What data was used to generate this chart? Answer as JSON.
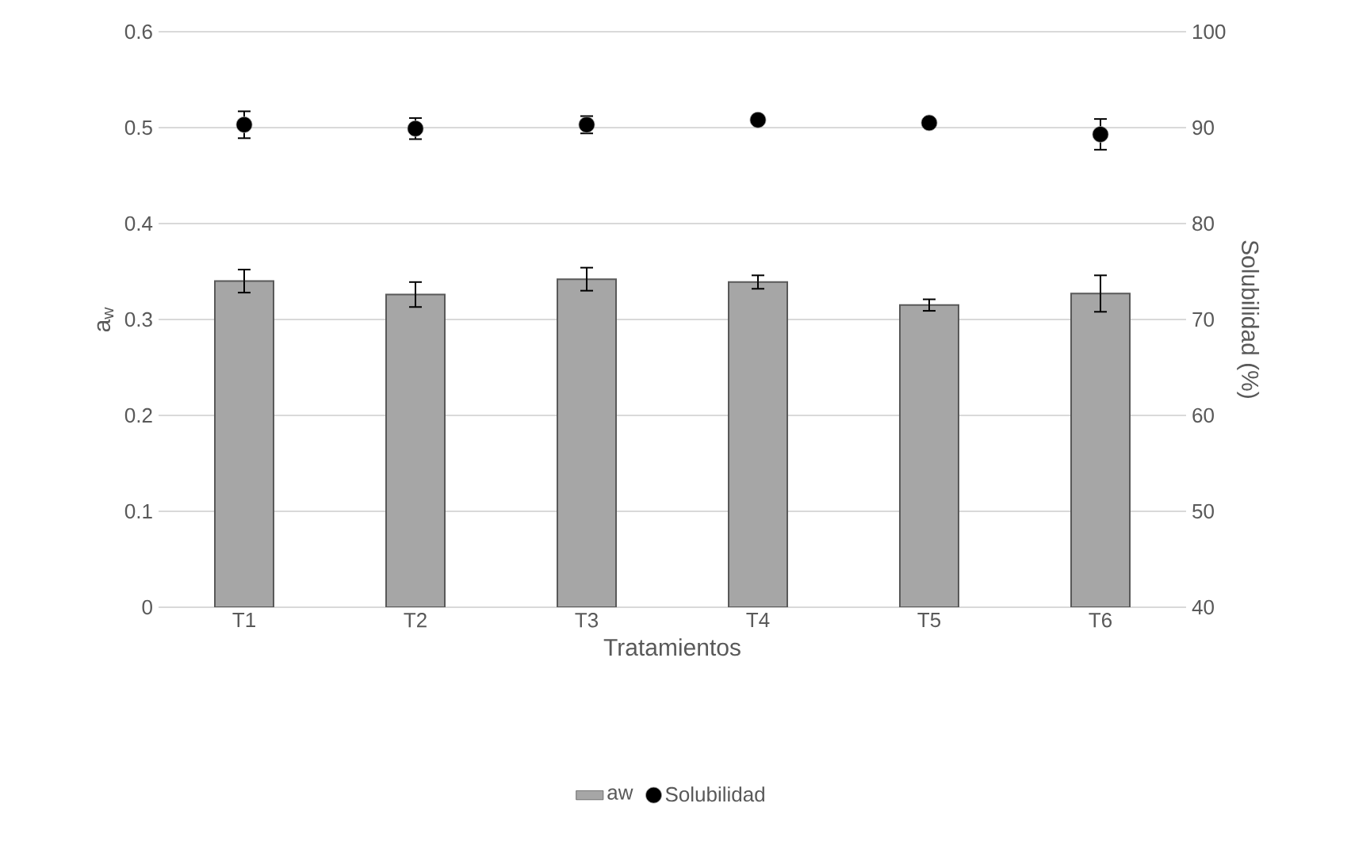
{
  "chart_data": {
    "type": "bar",
    "xlabel": "Tratamientos",
    "ylabel": "a$_{w}$",
    "y2label": "Solubilidad (%)",
    "categories": [
      "T1",
      "T2",
      "T3",
      "T4",
      "T5",
      "T6"
    ],
    "series": [
      {
        "name": "aw",
        "color": "#a6a6a6",
        "values": [
          0.34,
          0.326,
          0.342,
          0.339,
          0.315,
          0.327
        ],
        "errors": [
          0.012,
          0.013,
          0.012,
          0.007,
          0.006,
          0.019
        ]
      },
      {
        "name": "Solubilidad",
        "type": "scatter",
        "axis": "y2",
        "color": "#000000",
        "values": [
          90.3,
          89.9,
          90.3,
          90.8,
          90.5,
          89.3
        ],
        "errors": [
          1.4,
          1.1,
          0.9,
          0.3,
          0.3,
          1.6
        ]
      }
    ],
    "ylim": [
      0,
      0.6
    ],
    "yticks": [
      0,
      0.1,
      0.2,
      0.3,
      0.4,
      0.5,
      0.6
    ],
    "y2lim": [
      40,
      100
    ],
    "y2ticks": [
      40,
      50,
      60,
      70,
      80,
      90,
      100
    ],
    "grid": "y",
    "legend": "bottom",
    "marker": "circle"
  }
}
